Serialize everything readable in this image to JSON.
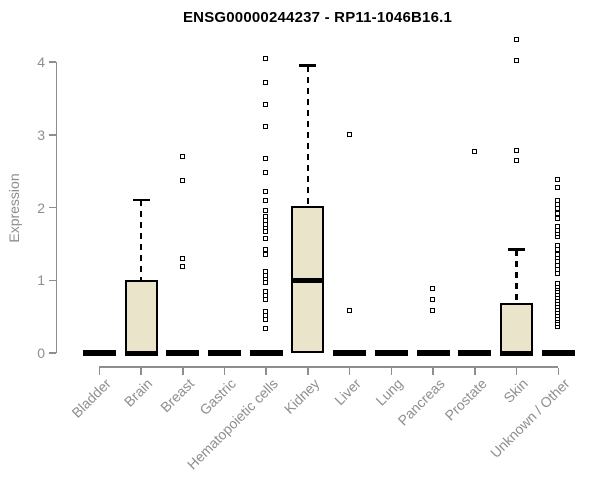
{
  "title": "ENSG00000244237 - RP11-1046B16.1",
  "chart_data": {
    "type": "boxplot",
    "title": "ENSG00000244237 - RP11-1046B16.1",
    "ylabel": "Expression",
    "xlabel": "",
    "ylim": [
      0,
      4.35
    ],
    "yticks": [
      0,
      1,
      2,
      3,
      4
    ],
    "grid": false,
    "legend": "none",
    "categories": [
      "Bladder",
      "Brain",
      "Breast",
      "Gastric",
      "Hematopoietic cells",
      "Kidney",
      "Liver",
      "Lung",
      "Pancreas",
      "Prostate",
      "Skin",
      "Unknown / Other"
    ],
    "boxes": [
      {
        "category": "Bladder",
        "q1": 0,
        "median": 0,
        "q3": 0,
        "whisker_low": 0,
        "whisker_high": 0,
        "outliers": []
      },
      {
        "category": "Brain",
        "q1": 0,
        "median": 0,
        "q3": 1.0,
        "whisker_low": 0,
        "whisker_high": 2.1,
        "outliers": []
      },
      {
        "category": "Breast",
        "q1": 0,
        "median": 0,
        "q3": 0,
        "whisker_low": 0,
        "whisker_high": 0,
        "outliers": [
          1.19,
          1.3,
          2.37,
          2.7
        ]
      },
      {
        "category": "Gastric",
        "q1": 0,
        "median": 0,
        "q3": 0,
        "whisker_low": 0,
        "whisker_high": 0,
        "outliers": []
      },
      {
        "category": "Hematopoietic cells",
        "q1": 0,
        "median": 0,
        "q3": 0,
        "whisker_low": 0,
        "whisker_high": 0,
        "outliers": [
          0.34,
          0.46,
          0.51,
          0.57,
          0.73,
          0.79,
          0.84,
          0.97,
          1.02,
          1.07,
          1.12,
          1.36,
          1.42,
          1.58,
          1.67,
          1.72,
          1.77,
          1.82,
          1.87,
          1.96,
          2.09,
          2.22,
          2.48,
          2.67,
          3.12,
          3.42,
          3.72,
          4.05
        ]
      },
      {
        "category": "Kidney",
        "q1": 0,
        "median": 1.0,
        "q3": 2.02,
        "whisker_low": 0,
        "whisker_high": 3.95,
        "outliers": []
      },
      {
        "category": "Liver",
        "q1": 0,
        "median": 0,
        "q3": 0,
        "whisker_low": 0,
        "whisker_high": 0,
        "outliers": [
          0.58,
          3.01
        ]
      },
      {
        "category": "Lung",
        "q1": 0,
        "median": 0,
        "q3": 0,
        "whisker_low": 0,
        "whisker_high": 0,
        "outliers": []
      },
      {
        "category": "Pancreas",
        "q1": 0,
        "median": 0,
        "q3": 0,
        "whisker_low": 0,
        "whisker_high": 0,
        "outliers": [
          0.59,
          0.74,
          0.89
        ]
      },
      {
        "category": "Prostate",
        "q1": 0,
        "median": 0,
        "q3": 0,
        "whisker_low": 0,
        "whisker_high": 0,
        "outliers": [
          2.77
        ]
      },
      {
        "category": "Skin",
        "q1": 0,
        "median": 0,
        "q3": 0.69,
        "whisker_low": 0,
        "whisker_high": 1.42,
        "outliers": [
          2.65,
          2.79,
          4.02,
          4.31
        ]
      },
      {
        "category": "Unknown / Other",
        "q1": 0,
        "median": 0,
        "q3": 0,
        "whisker_low": 0,
        "whisker_high": 0,
        "outliers": [
          0.36,
          0.4,
          0.44,
          0.48,
          0.52,
          0.56,
          0.6,
          0.64,
          0.68,
          0.72,
          0.76,
          0.8,
          0.84,
          0.88,
          0.92,
          0.96,
          1.09,
          1.15,
          1.2,
          1.26,
          1.31,
          1.36,
          1.42,
          1.48,
          1.6,
          1.64,
          1.69,
          1.74,
          1.85,
          1.92,
          1.98,
          2.04,
          2.1,
          2.28,
          2.38
        ]
      }
    ],
    "colors": {
      "box_fill": "#EAE5CA",
      "box_border": "#000000",
      "median": "#000000",
      "whisker": "#000000",
      "outlier": "#000000",
      "axis": "#8e8e8e",
      "tick_label": "#8e8e8e",
      "title": "#000000",
      "background": "#ffffff"
    }
  }
}
